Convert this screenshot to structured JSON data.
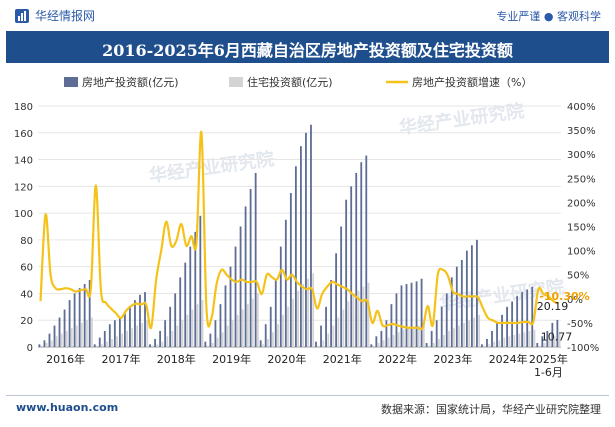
{
  "header": {
    "brand": "华经情报网",
    "brand_icon": "brand-logo-icon",
    "tagline": "专业严谨 ● 客观科学"
  },
  "watermark": "华经产业研究院",
  "footer": {
    "url": "www.huaon.com",
    "source": "数据来源：国家统计局，华经产业研究院整理"
  },
  "colors": {
    "title_bg": "#1f4e8c",
    "series1": "#5e6d96",
    "series2": "#d4d4d4",
    "line": "#f5c21a",
    "last_label": "#f0a000"
  },
  "chart_data": {
    "type": "bar",
    "title": "2016-2025年6月西藏自治区房地产投资额及住宅投资额",
    "y_left": {
      "ylim": [
        0,
        180
      ],
      "ticks": [
        "0",
        "20",
        "40",
        "60",
        "80",
        "100",
        "120",
        "140",
        "160",
        "180"
      ]
    },
    "y_right": {
      "ylim": [
        -100,
        400
      ],
      "ticks": [
        "-100%",
        "-50%",
        "0%",
        "50%",
        "100%",
        "150%",
        "200%",
        "250%",
        "300%",
        "350%",
        "400%"
      ]
    },
    "x_ticks": [
      "2016年",
      "2017年",
      "2018年",
      "2019年",
      "2020年",
      "2021年",
      "2022年",
      "2023年",
      "2024年",
      "2025年\n1-6月"
    ],
    "months_per_year": 11,
    "grid": true,
    "legend_position": "top",
    "series": [
      {
        "name": "房地产投资额(亿元)",
        "type": "bar",
        "values": [
          [
            2,
            5,
            10,
            16,
            22,
            28,
            35,
            40,
            44,
            47,
            50
          ],
          [
            2,
            7,
            12,
            17,
            20,
            22,
            25,
            30,
            35,
            39,
            41
          ],
          [
            2,
            6,
            12,
            20,
            30,
            40,
            52,
            63,
            75,
            86,
            98
          ],
          [
            4,
            10,
            20,
            32,
            46,
            60,
            75,
            90,
            105,
            118,
            130
          ],
          [
            5,
            17,
            30,
            50,
            75,
            95,
            115,
            135,
            150,
            160,
            166
          ],
          [
            4,
            16,
            30,
            50,
            70,
            90,
            110,
            120,
            130,
            138,
            143
          ],
          [
            2,
            8,
            12,
            20,
            32,
            40,
            46,
            47,
            48,
            49,
            51
          ],
          [
            3,
            12,
            20,
            30,
            40,
            52,
            60,
            65,
            72,
            76,
            80
          ],
          [
            2,
            6,
            12,
            18,
            24,
            30,
            34,
            38,
            41,
            43,
            45
          ],
          [
            3,
            8,
            12,
            18,
            20.19
          ]
        ]
      },
      {
        "name": "住宅投资额(亿元)",
        "type": "bar",
        "values": [
          [
            1,
            3,
            5,
            8,
            10,
            12,
            14,
            16,
            18,
            20,
            22
          ],
          [
            1,
            2,
            4,
            6,
            8,
            10,
            12,
            14,
            16,
            18,
            20
          ],
          [
            1,
            2,
            4,
            8,
            12,
            16,
            20,
            24,
            28,
            32,
            35
          ],
          [
            1,
            3,
            7,
            11,
            16,
            20,
            24,
            28,
            32,
            36,
            40
          ],
          [
            2,
            6,
            11,
            17,
            24,
            30,
            36,
            42,
            47,
            51,
            55
          ],
          [
            1,
            5,
            10,
            16,
            22,
            28,
            34,
            38,
            42,
            45,
            48
          ],
          [
            1,
            3,
            5,
            7,
            9,
            11,
            13,
            14,
            15,
            16,
            17
          ],
          [
            1,
            3,
            6,
            9,
            12,
            14,
            16,
            18,
            20,
            22,
            24
          ],
          [
            1,
            2,
            4,
            5,
            7,
            8,
            9,
            10,
            11,
            12,
            13
          ],
          [
            1,
            3,
            5,
            8,
            10.77
          ]
        ]
      },
      {
        "name": "房地产投资额增速（%）",
        "type": "line",
        "axis": "right",
        "values": [
          [
            -5,
            175,
            50,
            22,
            20,
            22,
            20,
            15,
            18,
            20,
            20
          ],
          [
            235,
            20,
            -8,
            -20,
            -30,
            -40,
            -25,
            -15,
            -10,
            -12,
            -12
          ],
          [
            -60,
            40,
            100,
            160,
            110,
            120,
            155,
            110,
            130,
            115,
            345
          ],
          [
            -20,
            -40,
            30,
            60,
            50,
            40,
            35,
            40,
            35,
            35,
            35
          ],
          [
            10,
            50,
            45,
            40,
            60,
            40,
            50,
            35,
            25,
            20,
            20
          ],
          [
            -20,
            10,
            25,
            35,
            30,
            25,
            20,
            10,
            2,
            -5,
            -5
          ],
          [
            -50,
            -25,
            -55,
            -55,
            -52,
            -55,
            -58,
            -60,
            -60,
            -60,
            -60
          ],
          [
            -15,
            -55,
            50,
            60,
            48,
            15,
            10,
            5,
            5,
            5,
            3
          ],
          [
            -20,
            -40,
            -45,
            -50,
            -50,
            -50,
            -50,
            -50,
            -48,
            -48,
            -48
          ],
          [
            20,
            10,
            5,
            -5,
            -10.3
          ]
        ]
      }
    ],
    "annotations": {
      "last_growth": "-10.30%",
      "last_total": "20.19",
      "last_residential": "10.77"
    }
  }
}
